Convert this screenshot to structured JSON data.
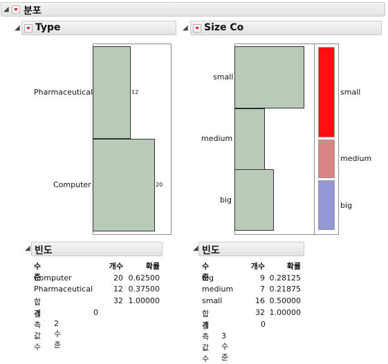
{
  "main": {
    "title": "분포"
  },
  "type_panel": {
    "title": "Type",
    "bars": [
      {
        "label": "Pharmaceutical",
        "count_label": "12"
      },
      {
        "label": "Computer",
        "count_label": "20"
      }
    ],
    "freq": {
      "title": "빈도",
      "headers": {
        "level": "수준",
        "count": "개수",
        "prob": "확률"
      },
      "rows": [
        {
          "level": "Computer",
          "count": "20",
          "prob": "0.62500"
        },
        {
          "level": "Pharmaceutical",
          "count": "12",
          "prob": "0.37500"
        },
        {
          "level": "합계",
          "count": "32",
          "prob": "1.00000"
        }
      ],
      "missing_label": "결측값 수",
      "missing_value": "0",
      "levels_note": "2 수준"
    }
  },
  "size_panel": {
    "title": "Size Co",
    "bars": [
      {
        "label": "small"
      },
      {
        "label": "medium"
      },
      {
        "label": "big"
      }
    ],
    "mosaic": [
      {
        "label": "small",
        "color": "#ff0f0f"
      },
      {
        "label": "medium",
        "color": "#d98585"
      },
      {
        "label": "big",
        "color": "#9499d6"
      }
    ],
    "freq": {
      "title": "빈도",
      "headers": {
        "level": "수준",
        "count": "개수",
        "prob": "확률"
      },
      "rows": [
        {
          "level": "big",
          "count": "9",
          "prob": "0.28125"
        },
        {
          "level": "medium",
          "count": "7",
          "prob": "0.21875"
        },
        {
          "level": "small",
          "count": "16",
          "prob": "0.50000"
        },
        {
          "level": "합계",
          "count": "32",
          "prob": "1.00000"
        }
      ],
      "missing_label": "결측값 수",
      "missing_value": "0",
      "levels_note": "3 수준"
    }
  },
  "chart_data": [
    {
      "type": "bar",
      "categories": [
        "Pharmaceutical",
        "Computer"
      ],
      "values": [
        12,
        20
      ],
      "title": "Type"
    },
    {
      "type": "bar",
      "categories": [
        "small",
        "medium",
        "big"
      ],
      "values": [
        16,
        7,
        9
      ],
      "title": "Size Co"
    }
  ]
}
